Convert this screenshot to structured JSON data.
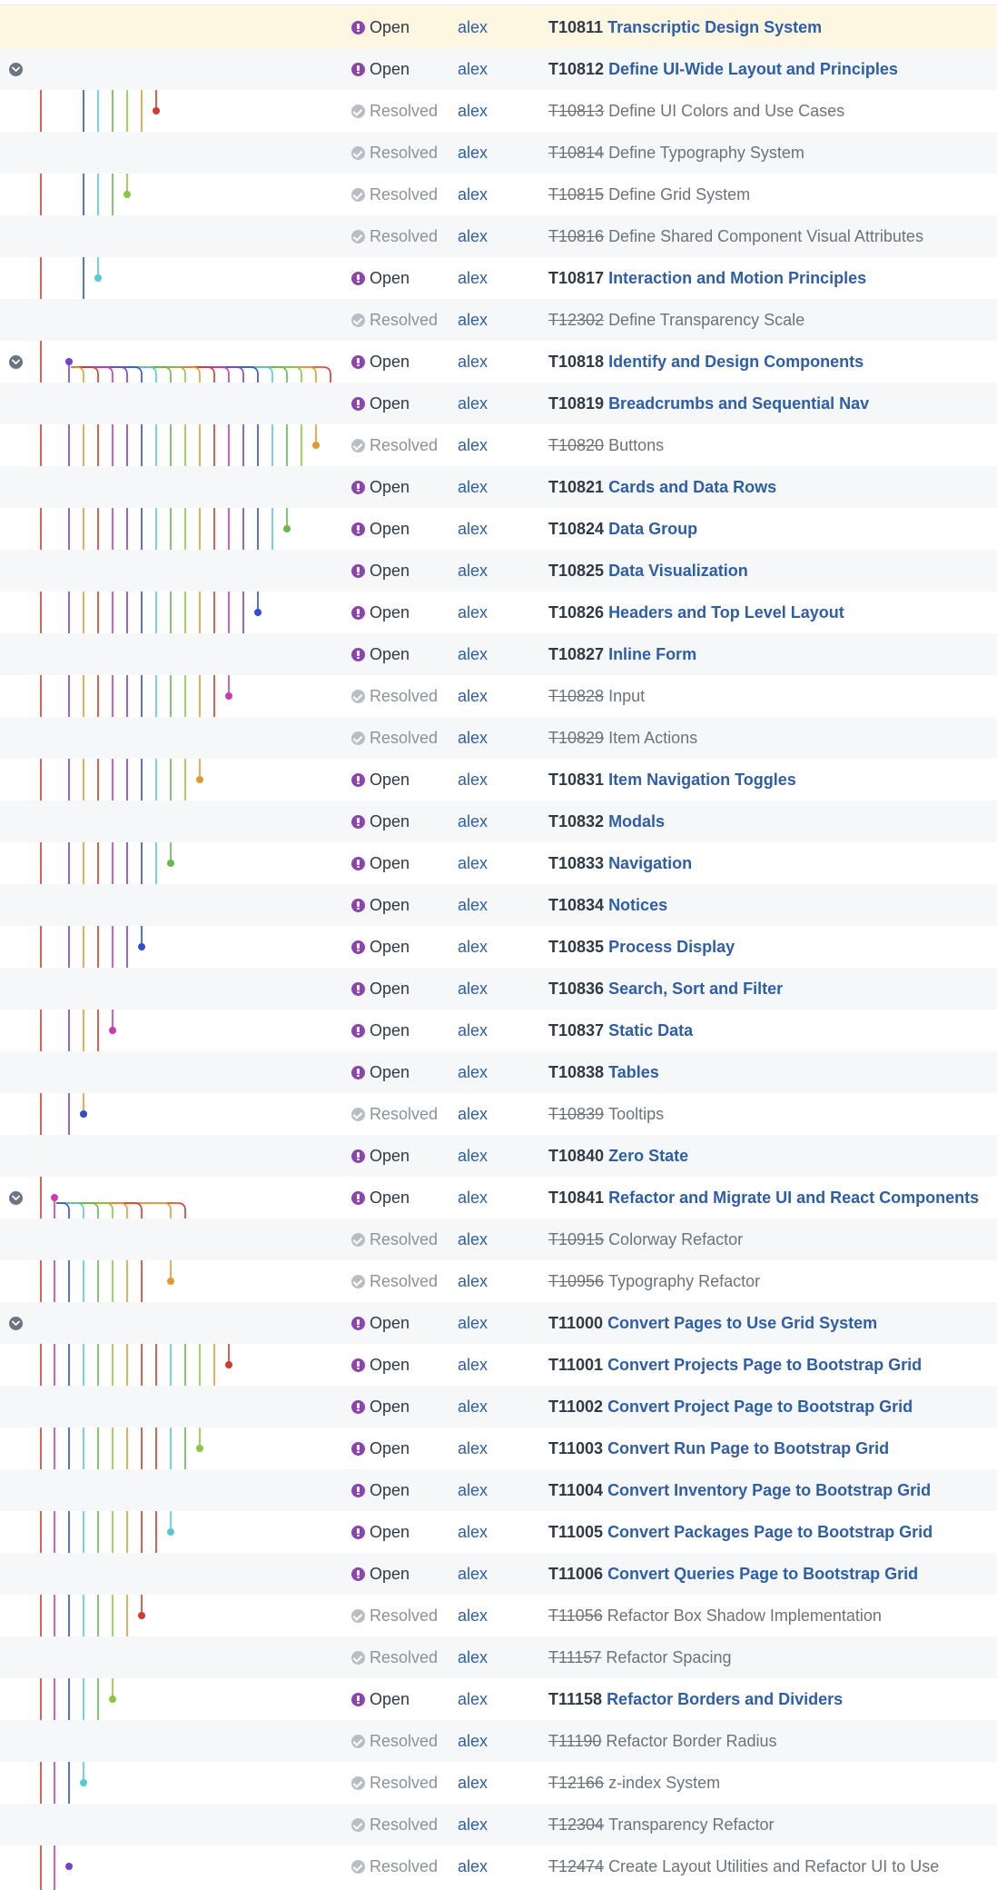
{
  "colors": {
    "accent_link": "#2e5ea7",
    "open_status": "#8e44ad",
    "resolved_status": "#b9bec5",
    "current_row": "#fdf6e0",
    "graph_palette": [
      "#d03b2f",
      "#e09a2f",
      "#8cc63f",
      "#66b94a",
      "#58c9d8",
      "#2f4fcf",
      "#7a3fcf",
      "#c93bb0"
    ]
  },
  "icons": {
    "open": "exclamation-circle-icon",
    "resolved": "check-circle-icon",
    "collapse": "chevron-down-icon"
  },
  "tasks": [
    {
      "id": "T10811",
      "title": "Transcriptic Design System",
      "status": "Open",
      "owner": "alex"
    },
    {
      "id": "T10812",
      "title": "Define UI-Wide Layout and Principles",
      "status": "Open",
      "owner": "alex"
    },
    {
      "id": "T10813",
      "title": "Define UI Colors and Use Cases",
      "status": "Resolved",
      "owner": "alex"
    },
    {
      "id": "T10814",
      "title": "Define Typography System",
      "status": "Resolved",
      "owner": "alex"
    },
    {
      "id": "T10815",
      "title": "Define Grid System",
      "status": "Resolved",
      "owner": "alex"
    },
    {
      "id": "T10816",
      "title": "Define Shared Component Visual Attributes",
      "status": "Resolved",
      "owner": "alex"
    },
    {
      "id": "T10817",
      "title": "Interaction and Motion Principles",
      "status": "Open",
      "owner": "alex"
    },
    {
      "id": "T12302",
      "title": "Define Transparency Scale",
      "status": "Resolved",
      "owner": "alex"
    },
    {
      "id": "T10818",
      "title": "Identify and Design Components",
      "status": "Open",
      "owner": "alex"
    },
    {
      "id": "T10819",
      "title": "Breadcrumbs and Sequential Nav",
      "status": "Open",
      "owner": "alex"
    },
    {
      "id": "T10820",
      "title": "Buttons",
      "status": "Resolved",
      "owner": "alex"
    },
    {
      "id": "T10821",
      "title": "Cards and Data Rows",
      "status": "Open",
      "owner": "alex"
    },
    {
      "id": "T10824",
      "title": "Data Group",
      "status": "Open",
      "owner": "alex"
    },
    {
      "id": "T10825",
      "title": "Data Visualization",
      "status": "Open",
      "owner": "alex"
    },
    {
      "id": "T10826",
      "title": "Headers and Top Level Layout",
      "status": "Open",
      "owner": "alex"
    },
    {
      "id": "T10827",
      "title": "Inline Form",
      "status": "Open",
      "owner": "alex"
    },
    {
      "id": "T10828",
      "title": "Input",
      "status": "Resolved",
      "owner": "alex"
    },
    {
      "id": "T10829",
      "title": "Item Actions",
      "status": "Resolved",
      "owner": "alex"
    },
    {
      "id": "T10831",
      "title": "Item Navigation Toggles",
      "status": "Open",
      "owner": "alex"
    },
    {
      "id": "T10832",
      "title": "Modals",
      "status": "Open",
      "owner": "alex"
    },
    {
      "id": "T10833",
      "title": "Navigation",
      "status": "Open",
      "owner": "alex"
    },
    {
      "id": "T10834",
      "title": "Notices",
      "status": "Open",
      "owner": "alex"
    },
    {
      "id": "T10835",
      "title": "Process Display",
      "status": "Open",
      "owner": "alex"
    },
    {
      "id": "T10836",
      "title": "Search, Sort and Filter",
      "status": "Open",
      "owner": "alex"
    },
    {
      "id": "T10837",
      "title": "Static Data",
      "status": "Open",
      "owner": "alex"
    },
    {
      "id": "T10838",
      "title": "Tables",
      "status": "Open",
      "owner": "alex"
    },
    {
      "id": "T10839",
      "title": "Tooltips",
      "status": "Resolved",
      "owner": "alex"
    },
    {
      "id": "T10840",
      "title": "Zero State",
      "status": "Open",
      "owner": "alex"
    },
    {
      "id": "T10841",
      "title": "Refactor and Migrate UI and React Components",
      "status": "Open",
      "owner": "alex"
    },
    {
      "id": "T10915",
      "title": "Colorway Refactor",
      "status": "Resolved",
      "owner": "alex"
    },
    {
      "id": "T10956",
      "title": "Typography Refactor",
      "status": "Resolved",
      "owner": "alex"
    },
    {
      "id": "T11000",
      "title": "Convert Pages to Use Grid System",
      "status": "Open",
      "owner": "alex"
    },
    {
      "id": "T11001",
      "title": "Convert Projects Page to Bootstrap Grid",
      "status": "Open",
      "owner": "alex"
    },
    {
      "id": "T11002",
      "title": "Convert Project Page to Bootstrap Grid",
      "status": "Open",
      "owner": "alex"
    },
    {
      "id": "T11003",
      "title": "Convert Run Page to Bootstrap Grid",
      "status": "Open",
      "owner": "alex"
    },
    {
      "id": "T11004",
      "title": "Convert Inventory Page to Bootstrap Grid",
      "status": "Open",
      "owner": "alex"
    },
    {
      "id": "T11005",
      "title": "Convert Packages Page to Bootstrap Grid",
      "status": "Open",
      "owner": "alex"
    },
    {
      "id": "T11006",
      "title": "Convert Queries Page to Bootstrap Grid",
      "status": "Open",
      "owner": "alex"
    },
    {
      "id": "T11056",
      "title": "Refactor Box Shadow Implementation",
      "status": "Resolved",
      "owner": "alex"
    },
    {
      "id": "T11157",
      "title": "Refactor Spacing",
      "status": "Resolved",
      "owner": "alex"
    },
    {
      "id": "T11158",
      "title": "Refactor Borders and Dividers",
      "status": "Open",
      "owner": "alex"
    },
    {
      "id": "T11190",
      "title": "Refactor Border Radius",
      "status": "Resolved",
      "owner": "alex"
    },
    {
      "id": "T12166",
      "title": "z-index System",
      "status": "Resolved",
      "owner": "alex"
    },
    {
      "id": "T12304",
      "title": "Transparency Refactor",
      "status": "Resolved",
      "owner": "alex"
    },
    {
      "id": "T12474",
      "title": "Create Layout Utilities and Refactor UI to Use",
      "status": "Resolved",
      "owner": "alex"
    }
  ]
}
